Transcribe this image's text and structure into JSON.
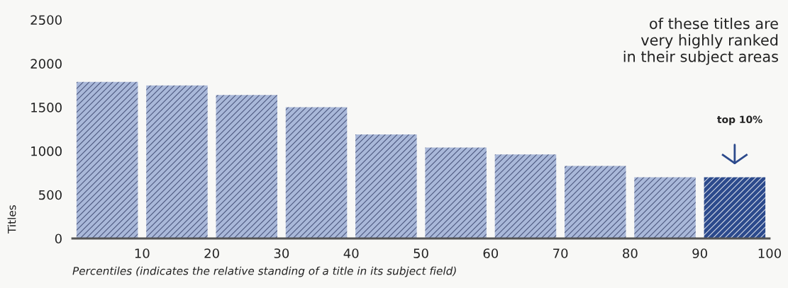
{
  "chart_data": {
    "type": "bar",
    "x": [
      5,
      15,
      25,
      35,
      45,
      55,
      65,
      75,
      85,
      95
    ],
    "values": [
      1790,
      1750,
      1640,
      1500,
      1190,
      1040,
      960,
      830,
      700,
      700
    ],
    "colors": [
      "#a9b8d9",
      "#a9b8d9",
      "#a9b8d9",
      "#a9b8d9",
      "#a9b8d9",
      "#a9b8d9",
      "#a9b8d9",
      "#a9b8d9",
      "#a9b8d9",
      "#2c4a8c"
    ],
    "xlabel": "Percentiles (indicates the relative standing of a title in its subject field)",
    "ylabel": "Titles",
    "xlim": [
      0,
      100
    ],
    "xticks": [
      10,
      20,
      30,
      40,
      50,
      60,
      70,
      80,
      90,
      100
    ],
    "ylim": [
      0,
      2500
    ],
    "yticks": [
      0,
      500,
      1000,
      1500,
      2000,
      2500
    ],
    "grid": false,
    "legend": false,
    "annotations": [
      "of these titles are\nvery highly ranked\nin their subject areas",
      "top 10%"
    ]
  }
}
